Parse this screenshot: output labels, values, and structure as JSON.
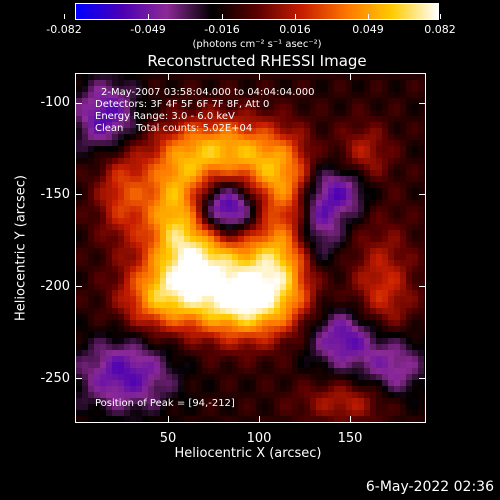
{
  "colorbar": {
    "ticks": [
      "-0.082",
      "-0.049",
      "-0.016",
      "0.016",
      "0.049",
      "0.082"
    ],
    "unit": "(photons cm⁻² s⁻¹ asec⁻²)",
    "colors": [
      "#0000ff",
      "#4b00b4",
      "#8c2a96",
      "#000000",
      "#5a0000",
      "#c81e00",
      "#ff7800",
      "#ffcc00",
      "#ffffff"
    ]
  },
  "plot": {
    "title": "Reconstructed RHESSI Image",
    "xlabel": "Heliocentric X (arcsec)",
    "ylabel": "Heliocentric Y (arcsec)",
    "x_ticks": [
      "50",
      "100",
      "150"
    ],
    "y_ticks": [
      "-100",
      "-150",
      "-200",
      "-250"
    ]
  },
  "annotations": {
    "time_range": "2-May-2007 03:58:04.000 to 04:04:04.000",
    "detectors": "Detectors: 3F 4F 5F 6F 7F 8F, Att 0",
    "energy_range": "Energy Range: 3.0 - 6.0 keV",
    "clean_counts": "Clean    Total counts: 5.02E+04",
    "peak": "Position of Peak = [94,-212]"
  },
  "footer": {
    "timestamp": "6-May-2022 02:36"
  },
  "chart_data": {
    "type": "heatmap",
    "title": "Reconstructed RHESSI Image",
    "xlabel": "Heliocentric X (arcsec)",
    "ylabel": "Heliocentric Y (arcsec)",
    "xlim": [
      3,
      193
    ],
    "ylim": [
      -276,
      -86
    ],
    "colorbar_range": [
      -0.082,
      0.082
    ],
    "peak": [
      94,
      -212
    ],
    "sources": [
      {
        "x": 95,
        "y": -212,
        "amp": 1.0,
        "sx": 22,
        "sy": 14
      },
      {
        "x": 72,
        "y": -188,
        "amp": 0.85,
        "sx": 18,
        "sy": 16
      },
      {
        "x": 113,
        "y": -188,
        "amp": 0.75,
        "sx": 14,
        "sy": 16
      },
      {
        "x": 58,
        "y": -158,
        "amp": 0.8,
        "sx": 13,
        "sy": 20
      },
      {
        "x": 82,
        "y": -128,
        "amp": 0.8,
        "sx": 22,
        "sy": 13
      },
      {
        "x": 115,
        "y": -145,
        "amp": 0.7,
        "sx": 14,
        "sy": 17
      },
      {
        "x": 48,
        "y": -208,
        "amp": 0.65,
        "sx": 15,
        "sy": 13
      },
      {
        "x": 28,
        "y": -150,
        "amp": 0.45,
        "sx": 10,
        "sy": 20
      },
      {
        "x": 170,
        "y": -210,
        "amp": 0.45,
        "sx": 12,
        "sy": 28
      },
      {
        "x": 160,
        "y": -130,
        "amp": 0.35,
        "sx": 10,
        "sy": 12
      },
      {
        "x": 150,
        "y": -265,
        "amp": 0.35,
        "sx": 18,
        "sy": 8
      },
      {
        "x": 85,
        "y": -160,
        "amp": -0.9,
        "sx": 13,
        "sy": 11
      },
      {
        "x": 135,
        "y": -165,
        "amp": -0.55,
        "sx": 9,
        "sy": 20
      },
      {
        "x": 30,
        "y": -250,
        "amp": -0.55,
        "sx": 18,
        "sy": 14
      },
      {
        "x": 150,
        "y": -230,
        "amp": -0.6,
        "sx": 14,
        "sy": 12
      },
      {
        "x": 20,
        "y": -110,
        "amp": -0.6,
        "sx": 12,
        "sy": 14
      },
      {
        "x": 175,
        "y": -245,
        "amp": -0.55,
        "sx": 12,
        "sy": 14
      },
      {
        "x": 150,
        "y": -150,
        "amp": -0.45,
        "sx": 10,
        "sy": 10
      }
    ]
  }
}
